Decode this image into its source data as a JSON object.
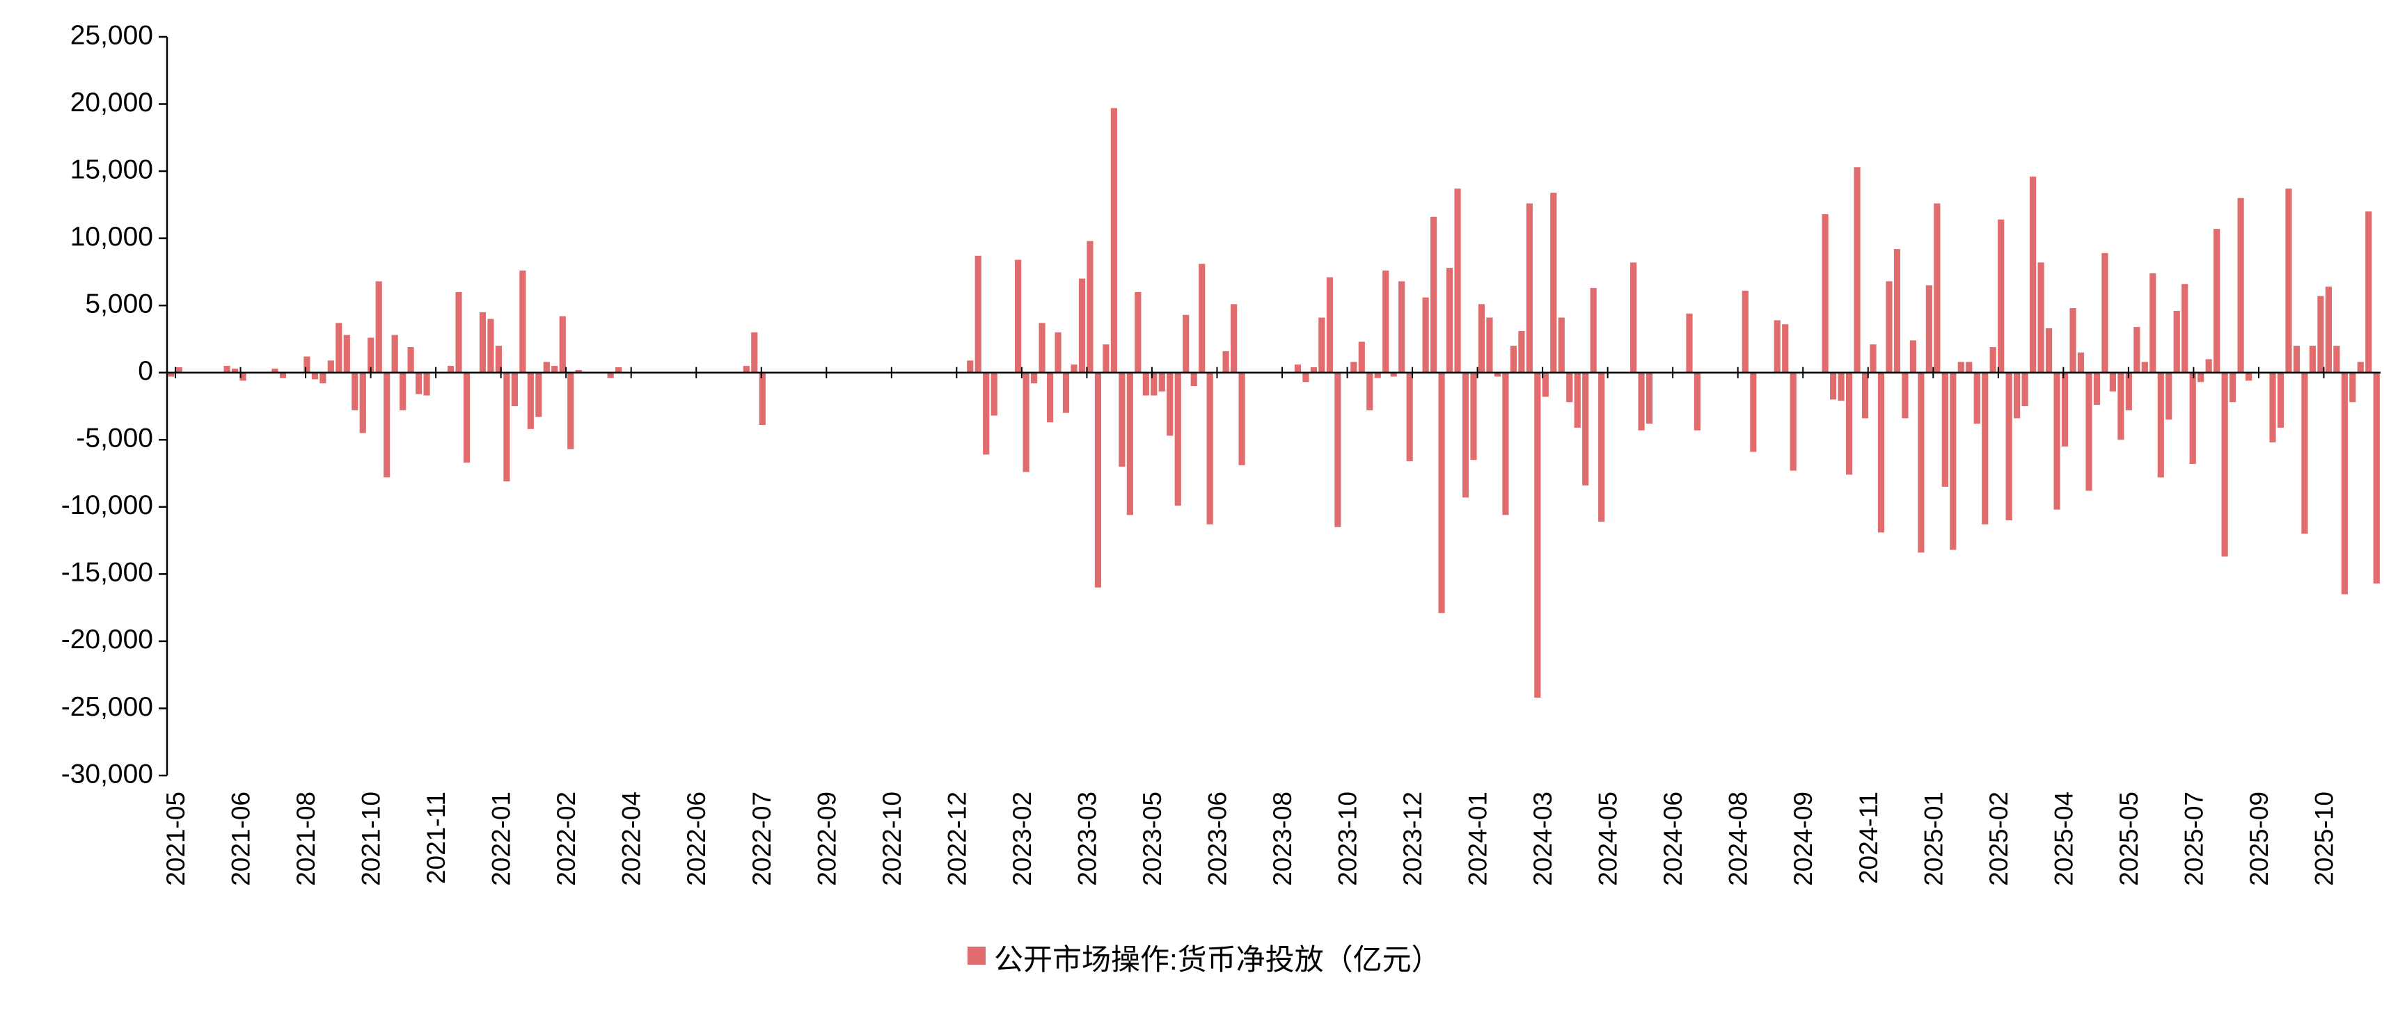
{
  "chart_data": {
    "type": "bar",
    "title": "",
    "xlabel": "",
    "ylabel": "",
    "ylim": [
      -30000,
      25000
    ],
    "yticks": [
      -30000,
      -25000,
      -20000,
      -15000,
      -10000,
      -5000,
      0,
      5000,
      10000,
      15000,
      20000,
      25000
    ],
    "ytick_labels": [
      "-30,000",
      "-25,000",
      "-20,000",
      "-15,000",
      "-10,000",
      "-5,000",
      "0",
      "5,000",
      "10,000",
      "15,000",
      "20,000",
      "25,000"
    ],
    "xtick_labels": [
      "2021-05",
      "2021-06",
      "2021-08",
      "2021-10",
      "2021-11",
      "2022-01",
      "2022-02",
      "2022-04",
      "2022-06",
      "2022-07",
      "2022-09",
      "2022-10",
      "2022-12",
      "2023-02",
      "2023-03",
      "2023-05",
      "2023-06",
      "2023-08",
      "2023-10",
      "2023-12",
      "2024-01",
      "2024-03",
      "2024-05",
      "2024-06",
      "2024-08",
      "2024-09",
      "2024-11",
      "2025-01",
      "2025-02",
      "2025-04",
      "2025-05",
      "2025-07",
      "2025-09",
      "2025-10"
    ],
    "grid": false,
    "legend": "bottom-center",
    "bar_color": "#e06c6e",
    "series": [
      {
        "name": "公开市场操作:货币净投放（亿元）",
        "values": [
          -300,
          400,
          0,
          0,
          0,
          0,
          0,
          500,
          300,
          -600,
          0,
          0,
          0,
          300,
          -400,
          0,
          0,
          1200,
          -500,
          -800,
          900,
          3700,
          2800,
          -2800,
          -4500,
          2600,
          6800,
          -7800,
          2800,
          -2800,
          1900,
          -1600,
          -1700,
          0,
          0,
          500,
          6000,
          -6700,
          0,
          4500,
          4000,
          2000,
          -8100,
          -2500,
          7600,
          -4200,
          -3300,
          800,
          500,
          4200,
          -5700,
          200,
          0,
          0,
          0,
          -400,
          400,
          0,
          0,
          0,
          0,
          0,
          0,
          0,
          0,
          0,
          0,
          0,
          0,
          0,
          0,
          0,
          500,
          3000,
          -3900,
          0,
          0,
          0,
          0,
          0,
          0,
          0,
          0,
          0,
          0,
          0,
          0,
          0,
          0,
          0,
          0,
          0,
          0,
          0,
          0,
          0,
          0,
          0,
          0,
          0,
          900,
          8700,
          -6100,
          -3200,
          0,
          0,
          8400,
          -7400,
          -800,
          3700,
          -3700,
          3000,
          -3000,
          600,
          7000,
          9800,
          -16000,
          2100,
          19700,
          -7000,
          -10600,
          6000,
          -1700,
          -1700,
          -1400,
          -4700,
          -9900,
          4300,
          -1000,
          8100,
          -11300,
          0,
          1600,
          5100,
          -6900,
          0,
          0,
          0,
          0,
          0,
          0,
          600,
          -700,
          400,
          4100,
          7100,
          -11500,
          0,
          800,
          2300,
          -2800,
          -400,
          7600,
          -300,
          6800,
          -6600,
          0,
          5600,
          11600,
          -17900,
          7800,
          13700,
          -9300,
          -6500,
          5100,
          4100,
          -300,
          -10600,
          2000,
          3100,
          12600,
          -24200,
          -1800,
          13400,
          4100,
          -2200,
          -4100,
          -8400,
          6300,
          -11100,
          0,
          0,
          0,
          8200,
          -4300,
          -3800,
          0,
          0,
          0,
          0,
          4400,
          -4300,
          0,
          0,
          0,
          0,
          0,
          6100,
          -5900,
          0,
          0,
          3900,
          3600,
          -7300,
          0,
          0,
          0,
          11800,
          -2000,
          -2100,
          -7600,
          15300,
          -3400,
          2100,
          -11900,
          6800,
          9200,
          -3400,
          2400,
          -13400,
          6500,
          12600,
          -8500,
          -13200,
          800,
          800,
          -3800,
          -11300,
          1900,
          11400,
          -11000,
          -3400,
          -2500,
          14600,
          8200,
          3300,
          -10200,
          -5500,
          4800,
          1500,
          -8800,
          -2400,
          8900,
          -1400,
          -5000,
          -2800,
          3400,
          800,
          7400,
          -7800,
          -3500,
          4600,
          6600,
          -6800,
          -700,
          1000,
          10700,
          -13700,
          -2200,
          13000,
          -600,
          0,
          0,
          -5200,
          -4100,
          13700,
          2000,
          -12000,
          2000,
          5700,
          6400,
          2000,
          -16500,
          -2200,
          800,
          12000,
          -15700
        ]
      }
    ]
  }
}
